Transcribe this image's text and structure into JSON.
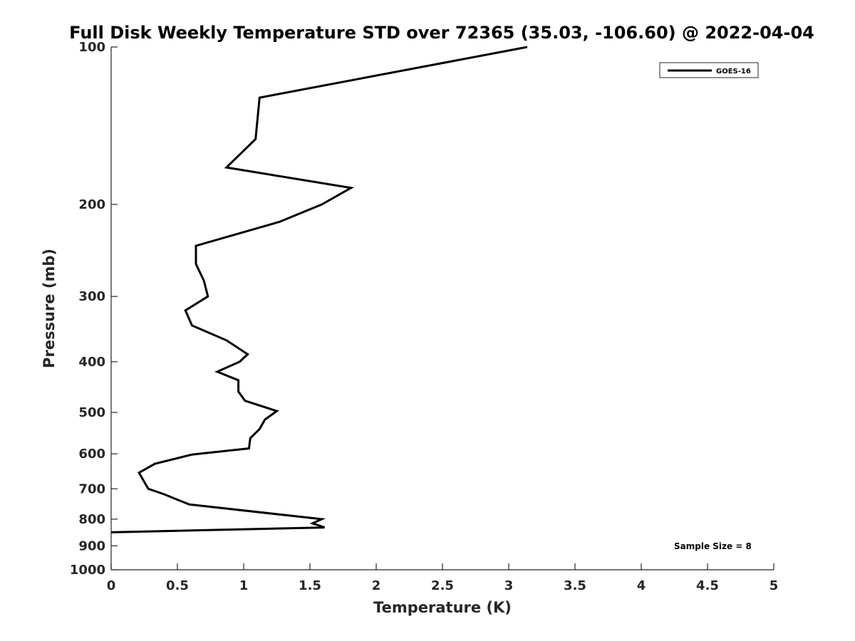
{
  "chart_data": {
    "type": "line",
    "title": "Full Disk Weekly Temperature STD over 72365 (35.03, -106.60) @ 2022-04-04",
    "xlabel": "Temperature (K)",
    "ylabel": "Pressure (mb)",
    "xlim": [
      0,
      5
    ],
    "ylim": [
      100,
      1000
    ],
    "y_scale": "log",
    "y_reversed": true,
    "x_ticks": [
      "0",
      "0.5",
      "1",
      "1.5",
      "2",
      "2.5",
      "3",
      "3.5",
      "4",
      "4.5",
      "5"
    ],
    "y_ticks": [
      "100",
      "200",
      "300",
      "400",
      "500",
      "600",
      "700",
      "800",
      "900",
      "1000"
    ],
    "grid": false,
    "legend_position": "top-right",
    "annotation": "Sample Size = 8",
    "series": [
      {
        "name": "GOES-16",
        "color": "#000000",
        "points": [
          [
            3.14,
            100
          ],
          [
            1.12,
            125
          ],
          [
            1.09,
            150
          ],
          [
            0.87,
            170
          ],
          [
            1.81,
            186
          ],
          [
            1.59,
            200
          ],
          [
            1.27,
            216
          ],
          [
            0.64,
            240
          ],
          [
            0.64,
            260
          ],
          [
            0.7,
            280
          ],
          [
            0.73,
            300
          ],
          [
            0.56,
            319
          ],
          [
            0.61,
            341
          ],
          [
            0.87,
            364
          ],
          [
            1.03,
            387
          ],
          [
            0.97,
            400
          ],
          [
            0.8,
            418
          ],
          [
            0.96,
            434
          ],
          [
            0.96,
            456
          ],
          [
            1.01,
            475
          ],
          [
            1.25,
            497
          ],
          [
            1.16,
            516
          ],
          [
            1.12,
            538
          ],
          [
            1.05,
            560
          ],
          [
            1.04,
            586
          ],
          [
            0.61,
            602
          ],
          [
            0.33,
            627
          ],
          [
            0.21,
            652
          ],
          [
            0.25,
            679
          ],
          [
            0.28,
            700
          ],
          [
            0.4,
            717
          ],
          [
            0.59,
            750
          ],
          [
            1.59,
            800
          ],
          [
            1.52,
            815
          ],
          [
            1.61,
            830
          ],
          [
            0.0,
            848
          ]
        ]
      }
    ]
  }
}
